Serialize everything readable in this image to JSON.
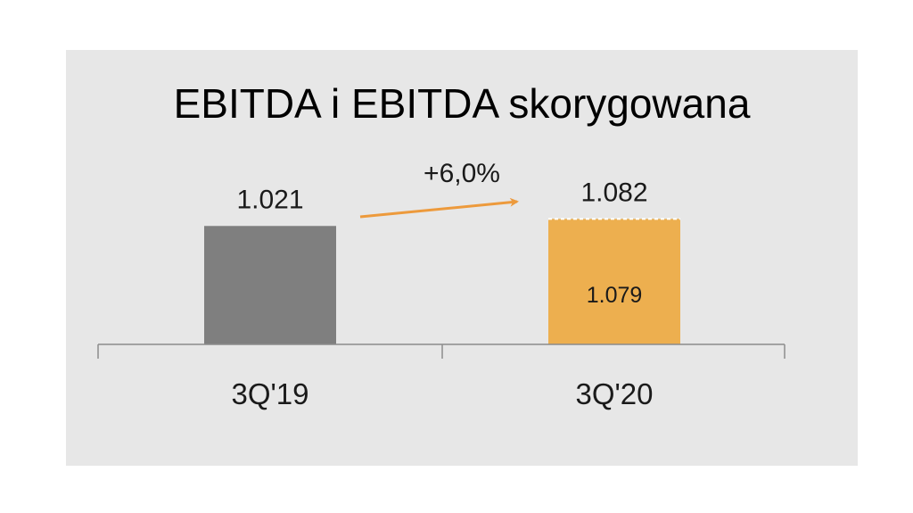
{
  "chart_data": {
    "type": "bar",
    "title": "EBITDA i EBITDA skorygowana",
    "categories": [
      "3Q'19",
      "3Q'20"
    ],
    "series": [
      {
        "values": [
          1021,
          1082
        ]
      },
      {
        "values": [
          null,
          1079
        ]
      }
    ],
    "data_labels": [
      "1.021",
      "1.082"
    ],
    "inner_labels": [
      null,
      "1.079"
    ],
    "annotation": "+6,0%",
    "colors": {
      "bar_3q19": "#7f7f7f",
      "bar_3q20": "#edaf4f",
      "arrow": "#ed9a3c",
      "panel_background": "#e7e7e7"
    },
    "xlabel": "",
    "ylabel": "",
    "grid": false,
    "legend": "none"
  }
}
